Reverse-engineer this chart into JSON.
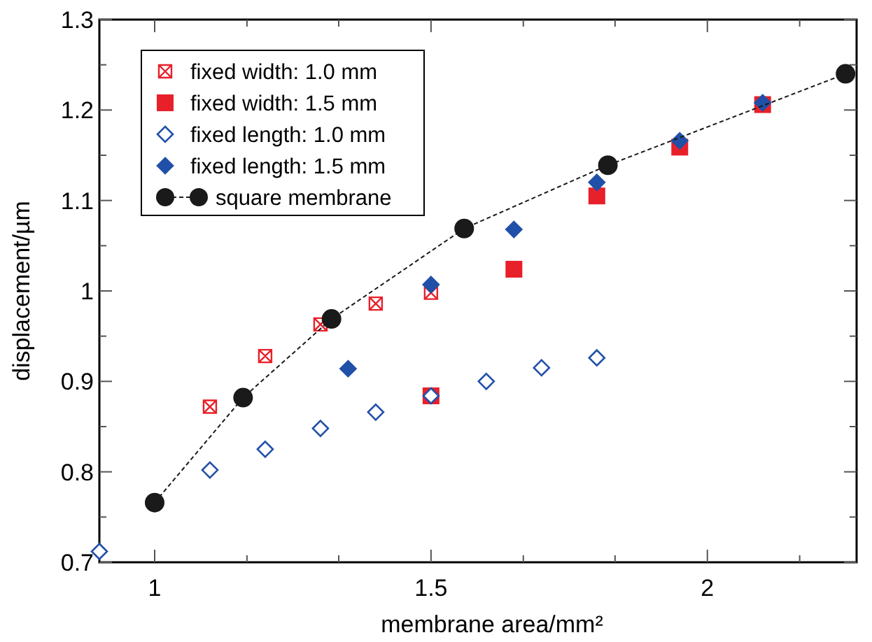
{
  "chart_data": {
    "type": "scatter",
    "xlabel": "membrane area/mm²",
    "ylabel": "displacement/µm",
    "xlim": [
      0.9,
      2.27
    ],
    "ylim": [
      0.7,
      1.3
    ],
    "xticks": [
      1,
      {
        "value": 1.167,
        "label": null
      },
      {
        "value": 1.333,
        "label": null
      },
      1.5,
      {
        "value": 1.667,
        "label": null
      },
      {
        "value": 1.833,
        "label": null
      },
      2,
      {
        "value": 2.167,
        "label": null
      }
    ],
    "yticks": [
      0.7,
      {
        "value": 0.75,
        "label": null
      },
      0.8,
      {
        "value": 0.85,
        "label": null
      },
      0.9,
      {
        "value": 0.95,
        "label": null
      },
      1,
      {
        "value": 1.05,
        "label": null
      },
      1.1,
      {
        "value": 1.15,
        "label": null
      },
      1.2,
      {
        "value": 1.25,
        "label": null
      },
      1.3
    ],
    "grid": false,
    "legend": "top left",
    "series": [
      {
        "name": "fixed width: 1.0 mm",
        "marker": "cross",
        "color": "#e8202a",
        "x": [
          1.1,
          1.2,
          1.3,
          1.4,
          1.5
        ],
        "values": [
          0.872,
          0.928,
          0.963,
          0.986,
          0.998
        ]
      },
      {
        "name": "fixed width: 1.5 mm",
        "marker": "square",
        "color": "#e8202a",
        "x": [
          1.5,
          1.65,
          1.8,
          1.95,
          2.1
        ],
        "values": [
          0.884,
          1.024,
          1.105,
          1.159,
          1.206
        ]
      },
      {
        "name": "fixed length: 1.0 mm",
        "marker": "diamond",
        "color": "#2150a8",
        "x": [
          0.9,
          1.1,
          1.2,
          1.3,
          1.4,
          1.5,
          1.6,
          1.7,
          1.8
        ],
        "values": [
          0.712,
          0.802,
          0.825,
          0.848,
          0.866,
          0.884,
          0.9,
          0.915,
          0.926
        ]
      },
      {
        "name": "fixed length: 1.5 mm",
        "marker": "diamond",
        "color": "#2150a8",
        "x": [
          1.35,
          1.5,
          1.65,
          1.8,
          1.95,
          2.1
        ],
        "values": [
          0.914,
          1.007,
          1.068,
          1.12,
          1.166,
          1.208
        ]
      },
      {
        "name": "square membrane",
        "type": "line",
        "marker": "circle",
        "line_style": "dashed",
        "color": "#1a1a1a",
        "x": [
          1.0,
          1.16,
          1.32,
          1.56,
          1.82,
          2.25
        ],
        "values": [
          0.766,
          0.882,
          0.969,
          1.069,
          1.139,
          1.24
        ]
      }
    ]
  }
}
